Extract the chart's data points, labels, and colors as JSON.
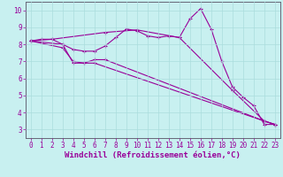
{
  "xlabel": "Windchill (Refroidissement éolien,°C)",
  "background_color": "#c8f0f0",
  "line_color": "#990099",
  "xlim": [
    -0.5,
    23.5
  ],
  "ylim": [
    2.5,
    10.5
  ],
  "xticks": [
    0,
    1,
    2,
    3,
    4,
    5,
    6,
    7,
    8,
    9,
    10,
    11,
    12,
    13,
    14,
    15,
    16,
    17,
    18,
    19,
    20,
    21,
    22,
    23
  ],
  "yticks": [
    3,
    4,
    5,
    6,
    7,
    8,
    9,
    10
  ],
  "series": [
    {
      "x": [
        0,
        1,
        2,
        3,
        4,
        5,
        6,
        7,
        8,
        9,
        10,
        11,
        12,
        13,
        14,
        15,
        16,
        17,
        18,
        19,
        20,
        21,
        22,
        23
      ],
      "y": [
        8.2,
        8.3,
        8.3,
        8.0,
        7.7,
        7.6,
        7.6,
        7.9,
        8.4,
        8.9,
        8.8,
        8.5,
        8.4,
        8.5,
        8.4,
        9.5,
        10.1,
        8.9,
        7.0,
        5.5,
        4.9,
        4.4,
        3.3,
        3.3
      ]
    },
    {
      "x": [
        0,
        2,
        7,
        10,
        14,
        19,
        22,
        23
      ],
      "y": [
        8.2,
        8.3,
        8.7,
        8.85,
        8.4,
        5.3,
        3.5,
        3.3
      ]
    },
    {
      "x": [
        0,
        3,
        4,
        5,
        6,
        22,
        23
      ],
      "y": [
        8.2,
        8.0,
        6.9,
        6.9,
        6.9,
        3.5,
        3.3
      ]
    },
    {
      "x": [
        0,
        3,
        4,
        5,
        6,
        7,
        22,
        23
      ],
      "y": [
        8.2,
        7.8,
        7.0,
        6.9,
        7.1,
        7.1,
        3.5,
        3.3
      ]
    }
  ],
  "grid_color": "#aadddd",
  "tick_fontsize": 5.5,
  "xlabel_fontsize": 6.5
}
